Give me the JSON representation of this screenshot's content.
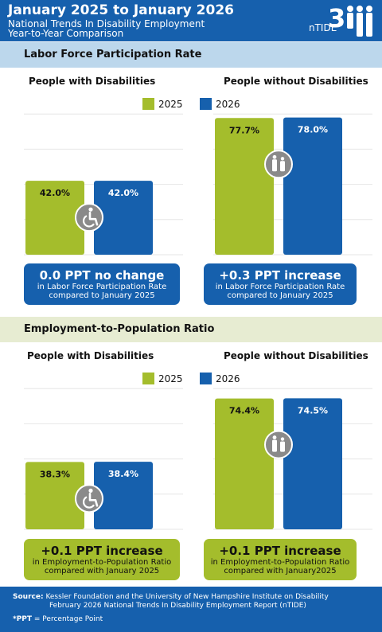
{
  "header": {
    "title": "January 2025 to January 2026",
    "subtitle_line1": "National Trends In Disability Employment",
    "subtitle_line2": "Year-to-Year Comparison",
    "logo_text": "nTIDE"
  },
  "section1": {
    "title": "Labor Force Participation Rate",
    "pwd_label": "People with Disabilities",
    "pwod_label": "People without Disabilities",
    "callout_pwd": {
      "headline": "0.0 PPT no change",
      "line1": "in Labor Force Participation Rate",
      "line2": "compared to January 2025"
    },
    "callout_pwod": {
      "headline": "+0.3 PPT  increase",
      "line1": "in Labor Force Participation Rate",
      "line2": "compared to January 2025"
    }
  },
  "section2": {
    "title": "Employment-to-Population Ratio",
    "pwd_label": "People with Disabilities",
    "pwod_label": "People without Disabilities",
    "callout_pwd": {
      "headline": "+0.1 PPT  increase",
      "line1": "in Employment-to-Population Ratio",
      "line2": "compared with January 2025"
    },
    "callout_pwod": {
      "headline": "+0.1 PPT  increase",
      "line1": "in Employment-to-Population Ratio",
      "line2": "compared with January2025"
    }
  },
  "legend": {
    "label_2025": "2025",
    "label_2026": "2026"
  },
  "colors": {
    "y2025": "#a4bd2c",
    "y2026": "#1660ad",
    "icon": "#8a8a8a"
  },
  "icons": {
    "pwd": "wheelchair-icon",
    "pwod": "people-icon"
  },
  "chart_data": [
    {
      "type": "bar",
      "title": "Labor Force Participation Rate",
      "categories": [
        "People with Disabilities"
      ],
      "series": [
        {
          "name": "2025",
          "values": [
            42.0
          ]
        },
        {
          "name": "2026",
          "values": [
            42.0
          ]
        }
      ],
      "labels": [
        "42.0%",
        "42.0%"
      ]
    },
    {
      "type": "bar",
      "title": "Labor Force Participation Rate",
      "categories": [
        "People without Disabilities"
      ],
      "series": [
        {
          "name": "2025",
          "values": [
            77.7
          ]
        },
        {
          "name": "2026",
          "values": [
            78.0
          ]
        }
      ],
      "labels": [
        "77.7%",
        "78.0%"
      ]
    },
    {
      "type": "bar",
      "title": "Employment-to-Population Ratio",
      "categories": [
        "People with Disabilities"
      ],
      "series": [
        {
          "name": "2025",
          "values": [
            38.3
          ]
        },
        {
          "name": "2026",
          "values": [
            38.4
          ]
        }
      ],
      "labels": [
        "38.3%",
        "38.4%"
      ]
    },
    {
      "type": "bar",
      "title": "Employment-to-Population Ratio",
      "categories": [
        "People without Disabilities"
      ],
      "series": [
        {
          "name": "2025",
          "values": [
            74.4
          ]
        },
        {
          "name": "2026",
          "values": [
            74.5
          ]
        }
      ],
      "labels": [
        "74.4%",
        "74.5%"
      ]
    }
  ],
  "footer": {
    "source_label": "Source:",
    "source_line1": "Kessler Foundation and the University of New Hampshire Institute on Disability",
    "source_line2": "February 2026 National Trends In Disability Employment Report (nTIDE)",
    "ppt_label": "*PPT",
    "ppt_text": " = Percentage Point"
  }
}
